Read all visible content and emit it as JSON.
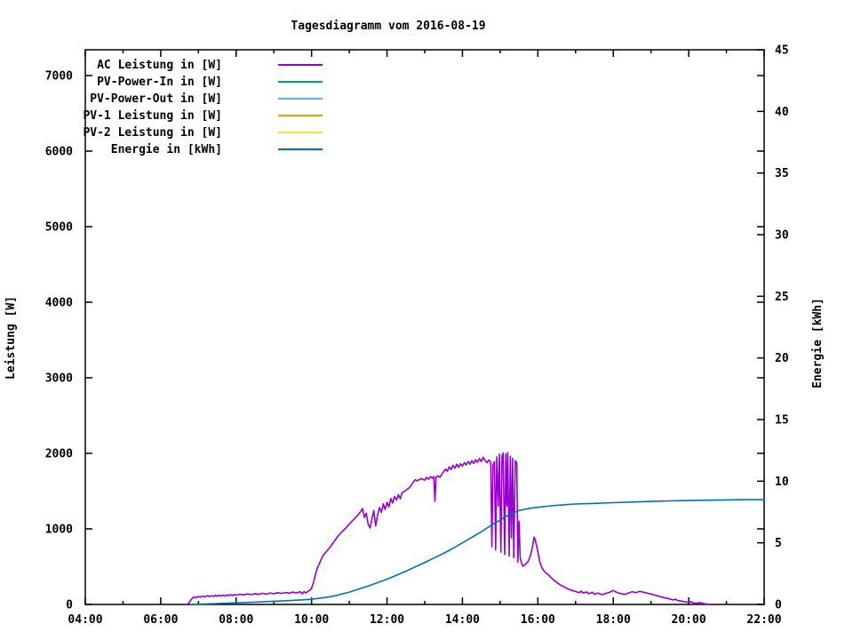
{
  "title": "Tagesdiagramm vom 2016-08-19",
  "colors": {
    "background": "#ffffff",
    "axis": "#000000"
  },
  "chart_data": {
    "type": "line",
    "title": "Tagesdiagramm vom 2016-08-19",
    "grid": false,
    "legend_position": "top-left-inside",
    "x_axis": {
      "min_hour": 4,
      "max_hour": 22,
      "major_tick_hours": 2,
      "minor_tick_hours": 1,
      "tick_labels": [
        "04:00",
        "06:00",
        "08:00",
        "10:00",
        "12:00",
        "14:00",
        "16:00",
        "18:00",
        "20:00",
        "22:00"
      ]
    },
    "y_axis_left": {
      "label": "Leistung [W]",
      "min": 0,
      "max": 7341,
      "tick_step": 1000,
      "tick_labels": [
        "0",
        "1000",
        "2000",
        "3000",
        "4000",
        "5000",
        "6000",
        "7000"
      ]
    },
    "y_axis_right": {
      "label": "Energie [kWh]",
      "min": 0,
      "max": 45,
      "tick_step": 5,
      "tick_labels": [
        "0",
        "5",
        "10",
        "15",
        "20",
        "25",
        "30",
        "35",
        "40",
        "45"
      ]
    },
    "series": [
      {
        "name": "AC Leistung in [W]",
        "color": "#9400d3",
        "axis": "left",
        "points": [
          [
            6.7,
            0
          ],
          [
            6.75,
            25
          ],
          [
            6.8,
            60
          ],
          [
            6.85,
            88
          ],
          [
            6.9,
            100
          ],
          [
            6.95,
            92
          ],
          [
            7.0,
            106
          ],
          [
            7.05,
            96
          ],
          [
            7.1,
            112
          ],
          [
            7.15,
            99
          ],
          [
            7.2,
            108
          ],
          [
            7.25,
            118
          ],
          [
            7.3,
            103
          ],
          [
            7.35,
            115
          ],
          [
            7.4,
            106
          ],
          [
            7.45,
            120
          ],
          [
            7.5,
            109
          ],
          [
            7.55,
            122
          ],
          [
            7.6,
            112
          ],
          [
            7.65,
            125
          ],
          [
            7.7,
            111
          ],
          [
            7.75,
            128
          ],
          [
            7.8,
            116
          ],
          [
            7.85,
            130
          ],
          [
            7.9,
            118
          ],
          [
            7.95,
            132
          ],
          [
            8.0,
            122
          ],
          [
            8.1,
            135
          ],
          [
            8.2,
            126
          ],
          [
            8.3,
            140
          ],
          [
            8.4,
            129
          ],
          [
            8.5,
            143
          ],
          [
            8.6,
            133
          ],
          [
            8.7,
            148
          ],
          [
            8.8,
            136
          ],
          [
            8.9,
            152
          ],
          [
            9.0,
            141
          ],
          [
            9.1,
            155
          ],
          [
            9.2,
            146
          ],
          [
            9.3,
            158
          ],
          [
            9.4,
            149
          ],
          [
            9.5,
            162
          ],
          [
            9.6,
            153
          ],
          [
            9.7,
            168
          ],
          [
            9.75,
            141
          ],
          [
            9.8,
            170
          ],
          [
            9.85,
            152
          ],
          [
            9.9,
            173
          ],
          [
            9.95,
            186
          ],
          [
            10.0,
            215
          ],
          [
            10.05,
            290
          ],
          [
            10.1,
            390
          ],
          [
            10.15,
            475
          ],
          [
            10.2,
            535
          ],
          [
            10.25,
            590
          ],
          [
            10.3,
            645
          ],
          [
            10.4,
            705
          ],
          [
            10.5,
            765
          ],
          [
            10.6,
            835
          ],
          [
            10.7,
            905
          ],
          [
            10.8,
            958
          ],
          [
            10.9,
            1008
          ],
          [
            11.0,
            1062
          ],
          [
            11.1,
            1118
          ],
          [
            11.2,
            1168
          ],
          [
            11.3,
            1228
          ],
          [
            11.35,
            1268
          ],
          [
            11.4,
            1152
          ],
          [
            11.45,
            1208
          ],
          [
            11.5,
            1062
          ],
          [
            11.55,
            1012
          ],
          [
            11.6,
            1132
          ],
          [
            11.65,
            1242
          ],
          [
            11.7,
            1038
          ],
          [
            11.75,
            1182
          ],
          [
            11.8,
            1282
          ],
          [
            11.85,
            1218
          ],
          [
            11.9,
            1332
          ],
          [
            11.95,
            1258
          ],
          [
            12.0,
            1352
          ],
          [
            12.05,
            1292
          ],
          [
            12.1,
            1402
          ],
          [
            12.15,
            1342
          ],
          [
            12.2,
            1428
          ],
          [
            12.25,
            1382
          ],
          [
            12.3,
            1452
          ],
          [
            12.35,
            1398
          ],
          [
            12.4,
            1478
          ],
          [
            12.5,
            1512
          ],
          [
            12.6,
            1548
          ],
          [
            12.7,
            1622
          ],
          [
            12.75,
            1652
          ],
          [
            12.8,
            1636
          ],
          [
            12.9,
            1666
          ],
          [
            13.0,
            1646
          ],
          [
            13.05,
            1682
          ],
          [
            13.1,
            1656
          ],
          [
            13.15,
            1692
          ],
          [
            13.2,
            1672
          ],
          [
            13.24,
            1692
          ],
          [
            13.27,
            1365
          ],
          [
            13.3,
            1686
          ],
          [
            13.35,
            1702
          ],
          [
            13.4,
            1682
          ],
          [
            13.45,
            1722
          ],
          [
            13.5,
            1756
          ],
          [
            13.55,
            1792
          ],
          [
            13.6,
            1762
          ],
          [
            13.65,
            1822
          ],
          [
            13.7,
            1786
          ],
          [
            13.75,
            1842
          ],
          [
            13.8,
            1802
          ],
          [
            13.85,
            1856
          ],
          [
            13.9,
            1816
          ],
          [
            13.95,
            1862
          ],
          [
            14.0,
            1832
          ],
          [
            14.05,
            1876
          ],
          [
            14.1,
            1846
          ],
          [
            14.15,
            1892
          ],
          [
            14.2,
            1856
          ],
          [
            14.25,
            1902
          ],
          [
            14.3,
            1866
          ],
          [
            14.35,
            1916
          ],
          [
            14.4,
            1882
          ],
          [
            14.45,
            1932
          ],
          [
            14.5,
            1892
          ],
          [
            14.55,
            1946
          ],
          [
            14.6,
            1906
          ],
          [
            14.65,
            1876
          ],
          [
            14.7,
            1912
          ],
          [
            14.75,
            1882
          ],
          [
            14.78,
            762
          ],
          [
            14.81,
            1842
          ],
          [
            14.85,
            1892
          ],
          [
            14.88,
            722
          ],
          [
            14.91,
            1952
          ],
          [
            14.95,
            1302
          ],
          [
            14.98,
            1992
          ],
          [
            15.02,
            692
          ],
          [
            15.05,
            1962
          ],
          [
            15.08,
            2002
          ],
          [
            15.12,
            662
          ],
          [
            15.15,
            1992
          ],
          [
            15.18,
            1302
          ],
          [
            15.2,
            2012
          ],
          [
            15.24,
            642
          ],
          [
            15.27,
            1962
          ],
          [
            15.3,
            882
          ],
          [
            15.33,
            1932
          ],
          [
            15.36,
            618
          ],
          [
            15.4,
            1902
          ],
          [
            15.44,
            1872
          ],
          [
            15.47,
            562
          ],
          [
            15.5,
            1102
          ],
          [
            15.53,
            622
          ],
          [
            15.57,
            542
          ],
          [
            15.6,
            506
          ],
          [
            15.65,
            522
          ],
          [
            15.7,
            546
          ],
          [
            15.75,
            576
          ],
          [
            15.8,
            642
          ],
          [
            15.85,
            742
          ],
          [
            15.9,
            892
          ],
          [
            15.93,
            852
          ],
          [
            15.96,
            792
          ],
          [
            16.0,
            702
          ],
          [
            16.05,
            562
          ],
          [
            16.1,
            492
          ],
          [
            16.15,
            452
          ],
          [
            16.2,
            422
          ],
          [
            16.3,
            382
          ],
          [
            16.4,
            332
          ],
          [
            16.5,
            292
          ],
          [
            16.6,
            256
          ],
          [
            16.7,
            232
          ],
          [
            16.8,
            206
          ],
          [
            16.9,
            186
          ],
          [
            17.0,
            171
          ],
          [
            17.1,
            156
          ],
          [
            17.15,
            176
          ],
          [
            17.2,
            151
          ],
          [
            17.3,
            166
          ],
          [
            17.35,
            141
          ],
          [
            17.45,
            161
          ],
          [
            17.5,
            136
          ],
          [
            17.6,
            151
          ],
          [
            17.7,
            129
          ],
          [
            17.8,
            146
          ],
          [
            17.9,
            161
          ],
          [
            17.95,
            173
          ],
          [
            18.0,
            186
          ],
          [
            18.05,
            171
          ],
          [
            18.1,
            159
          ],
          [
            18.2,
            143
          ],
          [
            18.3,
            133
          ],
          [
            18.4,
            151
          ],
          [
            18.5,
            169
          ],
          [
            18.6,
            156
          ],
          [
            18.7,
            173
          ],
          [
            18.8,
            163
          ],
          [
            18.9,
            149
          ],
          [
            19.0,
            139
          ],
          [
            19.1,
            123
          ],
          [
            19.2,
            109
          ],
          [
            19.3,
            97
          ],
          [
            19.4,
            85
          ],
          [
            19.5,
            73
          ],
          [
            19.6,
            59
          ],
          [
            19.65,
            71
          ],
          [
            19.7,
            53
          ],
          [
            19.8,
            45
          ],
          [
            19.9,
            35
          ],
          [
            20.0,
            27
          ],
          [
            20.05,
            39
          ],
          [
            20.1,
            23
          ],
          [
            20.2,
            15
          ],
          [
            20.3,
            25
          ],
          [
            20.4,
            9
          ],
          [
            20.5,
            5
          ],
          [
            20.6,
            0
          ]
        ]
      },
      {
        "name": "PV-Power-In in [W]",
        "color": "#009e73",
        "axis": "left",
        "points": []
      },
      {
        "name": "PV-Power-Out in [W]",
        "color": "#56b4e9",
        "axis": "left",
        "points": []
      },
      {
        "name": "PV-1 Leistung in [W]",
        "color": "#e69f00",
        "axis": "left",
        "points": []
      },
      {
        "name": "PV-2 Leistung in [W]",
        "color": "#f0e442",
        "axis": "left",
        "points": []
      },
      {
        "name": "Energie in [kWh]",
        "color": "#0072b2",
        "axis": "right",
        "points": [
          [
            6.8,
            0
          ],
          [
            7.0,
            0.02
          ],
          [
            7.5,
            0.07
          ],
          [
            8.0,
            0.13
          ],
          [
            8.5,
            0.19
          ],
          [
            9.0,
            0.26
          ],
          [
            9.5,
            0.33
          ],
          [
            10.0,
            0.42
          ],
          [
            10.5,
            0.63
          ],
          [
            10.75,
            0.8
          ],
          [
            11.0,
            1.0
          ],
          [
            11.25,
            1.25
          ],
          [
            11.5,
            1.5
          ],
          [
            11.75,
            1.77
          ],
          [
            12.0,
            2.05
          ],
          [
            12.25,
            2.37
          ],
          [
            12.5,
            2.7
          ],
          [
            12.75,
            3.05
          ],
          [
            13.0,
            3.4
          ],
          [
            13.25,
            3.77
          ],
          [
            13.5,
            4.15
          ],
          [
            13.75,
            4.55
          ],
          [
            14.0,
            5.0
          ],
          [
            14.25,
            5.45
          ],
          [
            14.5,
            5.9
          ],
          [
            14.75,
            6.4
          ],
          [
            15.0,
            6.85
          ],
          [
            15.25,
            7.3
          ],
          [
            15.5,
            7.62
          ],
          [
            15.75,
            7.78
          ],
          [
            16.0,
            7.88
          ],
          [
            16.25,
            7.97
          ],
          [
            16.5,
            8.04
          ],
          [
            16.75,
            8.1
          ],
          [
            17.0,
            8.15
          ],
          [
            17.5,
            8.2
          ],
          [
            18.0,
            8.26
          ],
          [
            18.5,
            8.31
          ],
          [
            19.0,
            8.36
          ],
          [
            19.5,
            8.4
          ],
          [
            20.0,
            8.43
          ],
          [
            20.5,
            8.46
          ],
          [
            21.0,
            8.48
          ],
          [
            21.5,
            8.5
          ],
          [
            22.0,
            8.5
          ]
        ]
      }
    ]
  }
}
